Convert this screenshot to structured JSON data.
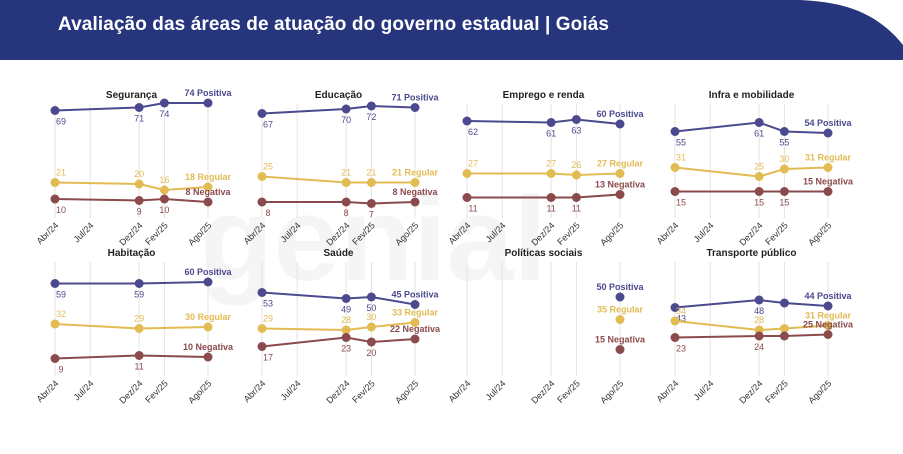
{
  "title": "Avaliação das áreas de atuação do governo estadual | Goiás",
  "colors": {
    "header": "#26357c",
    "header_accent": "#ffffff",
    "positiva": "#4b4a8e",
    "regular": "#e3bb53",
    "negativa": "#8b4a4c",
    "grid": "#e3e3e3"
  },
  "chart_data": [
    {
      "type": "line",
      "title": "Segurança",
      "x": [
        "Abr/24",
        "Dez/24",
        "Fev/25",
        "Ago/25"
      ],
      "x_ticks": [
        "Abr/24",
        "Jul/24",
        "Dez/24",
        "Fev/25",
        "Ago/25"
      ],
      "series": [
        {
          "name": "Positiva",
          "values": [
            69,
            71,
            74,
            74
          ],
          "labels": [
            "69",
            "71",
            "74",
            "74 Positiva"
          ]
        },
        {
          "name": "Regular",
          "values": [
            21,
            20,
            16,
            18
          ],
          "labels": [
            "21",
            "20",
            "16",
            "18 Regular"
          ]
        },
        {
          "name": "Negativa",
          "values": [
            10,
            9,
            10,
            8
          ],
          "labels": [
            "10",
            "9",
            "10",
            "8 Negativa"
          ]
        }
      ]
    },
    {
      "type": "line",
      "title": "Educação",
      "x": [
        "Abr/24",
        "Dez/24",
        "Fev/25",
        "Ago/25"
      ],
      "x_ticks": [
        "Abr/24",
        "Jul/24",
        "Dez/24",
        "Fev/25",
        "Ago/25"
      ],
      "series": [
        {
          "name": "Positiva",
          "values": [
            67,
            70,
            72,
            71
          ],
          "labels": [
            "67",
            "70",
            "72",
            "71 Positiva"
          ]
        },
        {
          "name": "Regular",
          "values": [
            25,
            21,
            21,
            21
          ],
          "labels": [
            "25",
            "21",
            "21",
            "21 Regular"
          ]
        },
        {
          "name": "Negativa",
          "values": [
            8,
            8,
            7,
            8
          ],
          "labels": [
            "8",
            "8",
            "7",
            "8 Negativa"
          ]
        }
      ]
    },
    {
      "type": "line",
      "title": "Emprego e renda",
      "x": [
        "Abr/24",
        "Dez/24",
        "Fev/25",
        "Ago/25"
      ],
      "x_ticks": [
        "Abr/24",
        "Jul/24",
        "Dez/24",
        "Fev/25",
        "Ago/25"
      ],
      "series": [
        {
          "name": "Positiva",
          "values": [
            62,
            61,
            63,
            60
          ],
          "labels": [
            "62",
            "61",
            "63",
            "60 Positiva"
          ]
        },
        {
          "name": "Regular",
          "values": [
            27,
            27,
            26,
            27
          ],
          "labels": [
            "27",
            "27",
            "26",
            "27 Regular"
          ]
        },
        {
          "name": "Negativa",
          "values": [
            11,
            11,
            11,
            13
          ],
          "labels": [
            "11",
            "11",
            "11",
            "13 Negativa"
          ]
        }
      ]
    },
    {
      "type": "line",
      "title": "Infra e mobilidade",
      "x": [
        "Abr/24",
        "Dez/24",
        "Fev/25",
        "Ago/25"
      ],
      "x_ticks": [
        "Abr/24",
        "Jul/24",
        "Dez/24",
        "Fev/25",
        "Ago/25"
      ],
      "series": [
        {
          "name": "Positiva",
          "values": [
            55,
            61,
            55,
            54
          ],
          "labels": [
            "55",
            "61",
            "55",
            "54 Positiva"
          ]
        },
        {
          "name": "Regular",
          "values": [
            31,
            25,
            30,
            31
          ],
          "labels": [
            "31",
            "25",
            "30",
            "31 Regular"
          ]
        },
        {
          "name": "Negativa",
          "values": [
            15,
            15,
            15,
            15
          ],
          "labels": [
            "15",
            "15",
            "15",
            "15 Negativa"
          ]
        }
      ]
    },
    {
      "type": "line",
      "title": "Habitação",
      "x": [
        "Abr/24",
        "Dez/24",
        "Ago/25"
      ],
      "x_ticks": [
        "Abr/24",
        "Jul/24",
        "Dez/24",
        "Fev/25",
        "Ago/25"
      ],
      "series": [
        {
          "name": "Positiva",
          "values": [
            59,
            59,
            60
          ],
          "labels": [
            "59",
            "59",
            "60 Positiva"
          ]
        },
        {
          "name": "Regular",
          "values": [
            32,
            29,
            30
          ],
          "labels": [
            "32",
            "29",
            "30 Regular"
          ]
        },
        {
          "name": "Negativa",
          "values": [
            9,
            11,
            10
          ],
          "labels": [
            "9",
            "11",
            "10 Negativa"
          ]
        }
      ]
    },
    {
      "type": "line",
      "title": "Saúde",
      "x": [
        "Abr/24",
        "Dez/24",
        "Fev/25",
        "Ago/25"
      ],
      "x_ticks": [
        "Abr/24",
        "Jul/24",
        "Dez/24",
        "Fev/25",
        "Ago/25"
      ],
      "series": [
        {
          "name": "Positiva",
          "values": [
            53,
            49,
            50,
            45
          ],
          "labels": [
            "53",
            "49",
            "50",
            "45 Positiva"
          ]
        },
        {
          "name": "Regular",
          "values": [
            29,
            28,
            30,
            33
          ],
          "labels": [
            "29",
            "28",
            "30",
            "33 Regular"
          ]
        },
        {
          "name": "Negativa",
          "values": [
            17,
            23,
            20,
            22
          ],
          "labels": [
            "17",
            "23",
            "20",
            "22 Negativa"
          ]
        }
      ]
    },
    {
      "type": "line",
      "title": "Políticas sociais",
      "x": [
        "Ago/25"
      ],
      "x_ticks": [
        "Abr/24",
        "Jul/24",
        "Dez/24",
        "Fev/25",
        "Ago/25"
      ],
      "series": [
        {
          "name": "Positiva",
          "values": [
            50
          ],
          "labels": [
            "50 Positiva"
          ]
        },
        {
          "name": "Regular",
          "values": [
            35
          ],
          "labels": [
            "35 Regular"
          ]
        },
        {
          "name": "Negativa",
          "values": [
            15
          ],
          "labels": [
            "15 Negativa"
          ]
        }
      ]
    },
    {
      "type": "line",
      "title": "Transporte público",
      "x": [
        "Abr/24",
        "Dez/24",
        "Fev/25",
        "Ago/25"
      ],
      "x_ticks": [
        "Abr/24",
        "Jul/24",
        "Dez/24",
        "Fev/25",
        "Ago/25"
      ],
      "series": [
        {
          "name": "Positiva",
          "values": [
            43,
            48,
            46,
            44
          ],
          "labels": [
            "43",
            "48",
            "",
            "44 Positiva"
          ]
        },
        {
          "name": "Regular",
          "values": [
            34,
            28,
            29,
            31
          ],
          "labels": [
            "34",
            "28",
            "",
            "31 Regular"
          ]
        },
        {
          "name": "Negativa",
          "values": [
            23,
            24,
            24,
            25
          ],
          "labels": [
            "23",
            "24",
            "",
            "25 Negativa"
          ]
        }
      ]
    }
  ]
}
